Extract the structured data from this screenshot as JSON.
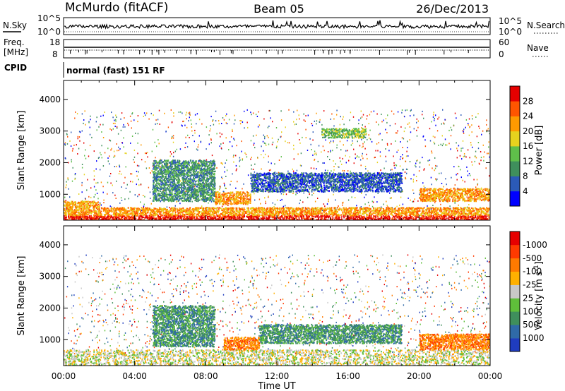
{
  "header": {
    "station": "McMurdo (fitACF)",
    "beam": "Beam 05",
    "date": "26/Dec/2013"
  },
  "summary_panels": {
    "nsky_label": "N.Sky",
    "nsearch_label": "N.Search",
    "noise_ticks": [
      "10^5",
      "10^0"
    ],
    "freq_label_line1": "Freq.",
    "freq_label_line2": "[MHz]",
    "freq_ticks": [
      "18",
      "8"
    ],
    "nave_label": "Nave",
    "nave_ticks": [
      "60",
      "0"
    ],
    "cpid_label": "CPID",
    "cpid_text": "normal (fast) 151 RF"
  },
  "chart_data": [
    {
      "type": "heatmap",
      "name": "power",
      "xlabel": "Time UT",
      "ylabel": "Slant Range [km]",
      "xlim": [
        0,
        24
      ],
      "ylim": [
        180,
        4600
      ],
      "xticks": [
        "00:00",
        "04:00",
        "08:00",
        "12:00",
        "16:00",
        "20:00",
        "00:00"
      ],
      "yticks": [
        1000,
        2000,
        3000,
        4000
      ],
      "colorbar": {
        "label": "Power [dB]",
        "ticks": [
          "4",
          "8",
          "12",
          "16",
          "20",
          "24",
          "28"
        ],
        "colors": [
          "#0000ff",
          "#2b5ab8",
          "#3f8f5c",
          "#5fbf4a",
          "#e6d21e",
          "#ff9a00",
          "#ff5500",
          "#e60000"
        ]
      },
      "features": [
        {
          "t0": 0.0,
          "t1": 24.0,
          "r0": 200,
          "r1": 350,
          "level": 7
        },
        {
          "t0": 0.0,
          "t1": 24.0,
          "r0": 350,
          "r1": 600,
          "level": 5
        },
        {
          "t0": 0.0,
          "t1": 2.0,
          "r0": 600,
          "r1": 800,
          "level": 5
        },
        {
          "t0": 5.0,
          "t1": 8.5,
          "r0": 800,
          "r1": 2100,
          "level": 2
        },
        {
          "t0": 8.5,
          "t1": 10.5,
          "r0": 700,
          "r1": 1100,
          "level": 5
        },
        {
          "t0": 10.5,
          "t1": 19.0,
          "r0": 1100,
          "r1": 1700,
          "level": 1
        },
        {
          "t0": 14.5,
          "t1": 17.0,
          "r0": 2800,
          "r1": 3100,
          "level": 3
        },
        {
          "t0": 20.0,
          "t1": 24.0,
          "r0": 800,
          "r1": 1200,
          "level": 5
        }
      ]
    },
    {
      "type": "heatmap",
      "name": "velocity",
      "xlabel": "Time UT",
      "ylabel": "Slant Range [km]",
      "xlim": [
        0,
        24
      ],
      "ylim": [
        180,
        4600
      ],
      "xticks": [
        "00:00",
        "04:00",
        "08:00",
        "12:00",
        "16:00",
        "20:00",
        "00:00"
      ],
      "yticks": [
        1000,
        2000,
        3000,
        4000
      ],
      "colorbar": {
        "label": "Velocity [m s^-1]",
        "label_main": "Velocity",
        "label_unit": "[m s",
        "label_exp": "-1",
        "label_close": "]",
        "ticks": [
          "1000",
          "500",
          "100",
          "25",
          "-25",
          "-100",
          "-500",
          "-1000"
        ],
        "colors": [
          "#1f3cbf",
          "#2f6aa8",
          "#3f8f5c",
          "#5fbf3a",
          "#c8c8c8",
          "#ffb000",
          "#ff7a00",
          "#ff3a00",
          "#e60000"
        ]
      },
      "features": [
        {
          "t0": 0.0,
          "t1": 24.0,
          "r0": 200,
          "r1": 700,
          "level": 4
        },
        {
          "t0": 5.0,
          "t1": 8.5,
          "r0": 800,
          "r1": 2100,
          "level": 2
        },
        {
          "t0": 9.0,
          "t1": 11.0,
          "r0": 700,
          "r1": 1100,
          "level": 6
        },
        {
          "t0": 11.0,
          "t1": 19.0,
          "r0": 900,
          "r1": 1500,
          "level": 2
        },
        {
          "t0": 20.0,
          "t1": 24.0,
          "r0": 700,
          "r1": 1200,
          "level": 6
        }
      ]
    }
  ]
}
